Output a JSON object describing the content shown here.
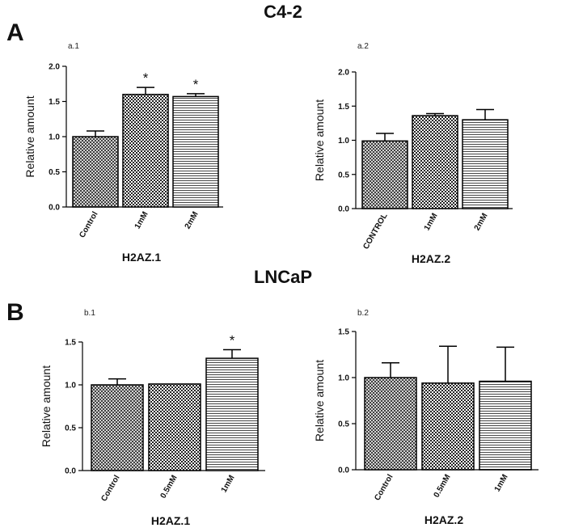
{
  "section_a": {
    "title": "C4-2",
    "letter": "A"
  },
  "section_b": {
    "title": "LNCaP",
    "letter": "B"
  },
  "chart_data": [
    {
      "id": "a.1",
      "type": "bar",
      "panel_label": "a.1",
      "ylabel": "Relative amount",
      "xlabel": "H2AZ.1",
      "ylim": [
        0,
        2.0
      ],
      "yticks": [
        "0.0",
        "0.5",
        "1.0",
        "1.5",
        "2.0"
      ],
      "categories": [
        "Control",
        "1mM",
        "2mM"
      ],
      "values": [
        1.0,
        1.6,
        1.57
      ],
      "errors": [
        0.08,
        0.1,
        0.04
      ],
      "significance": [
        "",
        "*",
        "*"
      ],
      "patterns": [
        "crosshatch",
        "check",
        "hlines"
      ]
    },
    {
      "id": "a.2",
      "type": "bar",
      "panel_label": "a.2",
      "ylabel": "Relative amount",
      "xlabel": "H2AZ.2",
      "ylim": [
        0,
        2.0
      ],
      "yticks": [
        "0.0",
        "0.5",
        "1.0",
        "1.5",
        "2.0"
      ],
      "categories": [
        "CONTROL",
        "1mM",
        "2mM"
      ],
      "values": [
        0.99,
        1.36,
        1.3
      ],
      "errors": [
        0.11,
        0.03,
        0.15
      ],
      "significance": [
        "",
        "",
        ""
      ],
      "patterns": [
        "crosshatch",
        "check",
        "hlines"
      ]
    },
    {
      "id": "b.1",
      "type": "bar",
      "panel_label": "b.1",
      "ylabel": "Relative amount",
      "xlabel": "H2AZ.1",
      "ylim": [
        0,
        1.5
      ],
      "yticks": [
        "0.0",
        "0.5",
        "1.0",
        "1.5"
      ],
      "categories": [
        "Control",
        "0.5mM",
        "1mM"
      ],
      "values": [
        1.0,
        1.01,
        1.31
      ],
      "errors": [
        0.07,
        0.0,
        0.1
      ],
      "significance": [
        "",
        "",
        "*"
      ],
      "patterns": [
        "crosshatch",
        "check",
        "hlines"
      ]
    },
    {
      "id": "b.2",
      "type": "bar",
      "panel_label": "b.2",
      "ylabel": "Relative amount",
      "xlabel": "H2AZ.2",
      "ylim": [
        0,
        1.5
      ],
      "yticks": [
        "0.0",
        "0.5",
        "1.0",
        "1.5"
      ],
      "categories": [
        "Control",
        "0.5mM",
        "1mM"
      ],
      "values": [
        1.0,
        0.94,
        0.96
      ],
      "errors": [
        0.16,
        0.4,
        0.37
      ],
      "significance": [
        "",
        "",
        ""
      ],
      "patterns": [
        "crosshatch",
        "check",
        "hlines"
      ]
    }
  ]
}
